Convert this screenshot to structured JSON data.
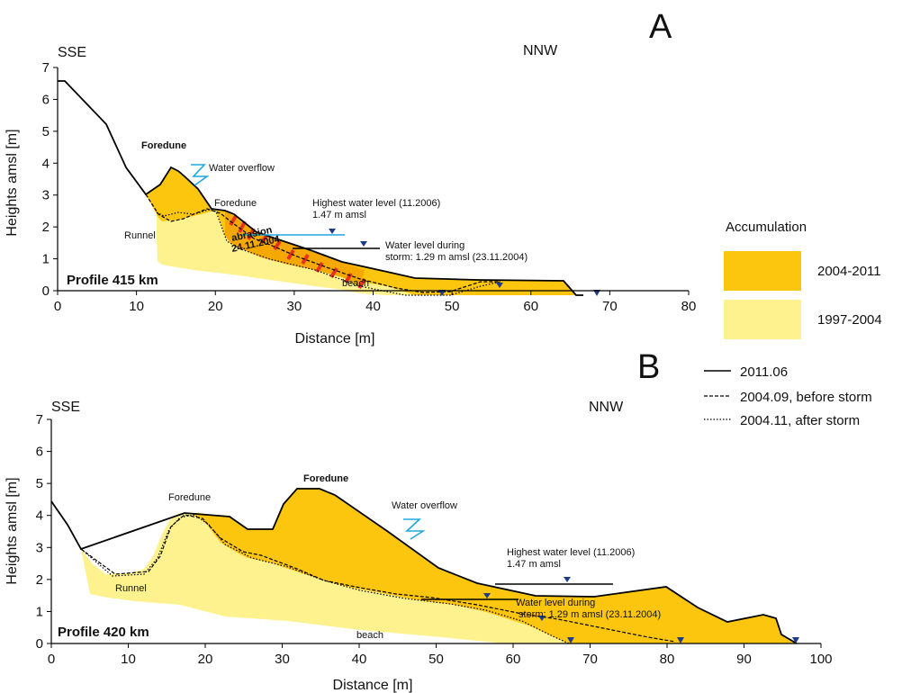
{
  "chart_data": [
    {
      "type": "area",
      "panel_letter": "A",
      "profile_label": "Profile 415 km",
      "direction_left": "SSE",
      "direction_right": "NNW",
      "xlabel": "Distance [m]",
      "ylabel": "Heights amsl [m]",
      "xlim": [
        0,
        80
      ],
      "ylim": [
        0,
        7
      ],
      "xticks": [
        0,
        10,
        20,
        30,
        40,
        50,
        60,
        70,
        80
      ],
      "yticks": [
        0,
        1,
        2,
        3,
        4,
        5,
        6,
        7
      ],
      "series": [
        {
          "name": "2011.06",
          "x": [
            0,
            1,
            6,
            11,
            14.5,
            18,
            20,
            25,
            30,
            45,
            55,
            64,
            68
          ],
          "y": [
            6.7,
            6.7,
            5.3,
            3.0,
            3.95,
            2.45,
            2.4,
            1.5,
            0.85,
            0.4,
            0.32,
            0.3,
            0
          ]
        },
        {
          "name": "2004.09, before storm",
          "x": [
            11,
            13,
            16,
            19,
            22,
            25,
            28,
            34,
            40,
            45,
            48,
            52,
            55
          ],
          "y": [
            3.0,
            2.5,
            2.3,
            2.5,
            2.2,
            1.5,
            0.9,
            0.55,
            0.2,
            0.05,
            0.05,
            0.2,
            0.2
          ]
        },
        {
          "name": "2004.11, after storm",
          "x": [
            13,
            15,
            18,
            20,
            22,
            24,
            27,
            35,
            42,
            48,
            52,
            55
          ],
          "y": [
            2.3,
            2.2,
            2.4,
            2.4,
            1.0,
            0.8,
            0.55,
            0.35,
            0.1,
            0.05,
            0.2,
            0.2
          ]
        }
      ],
      "accumulation": [
        {
          "period": "2004-2011",
          "color": "#FCC60E"
        },
        {
          "period": "1997-2004",
          "color": "#FEF28E"
        }
      ],
      "water_levels": [
        {
          "label": "Highest water level (11.2006)",
          "sublabel": "1.47 m amsl",
          "color": "#20A8E0"
        },
        {
          "label": "Water level during",
          "sublabel": "storm: 1.29 m amsl (23.11.2004)",
          "color": "#000000"
        }
      ],
      "annotations": [
        "Foredune",
        "Water overflow",
        "Foredune",
        "Runnel",
        "abrasion",
        "24.11.2004",
        "beach"
      ]
    },
    {
      "type": "area",
      "panel_letter": "B",
      "profile_label": "Profile 420 km",
      "direction_left": "SSE",
      "direction_right": "NNW",
      "xlabel": "Distance [m]",
      "ylabel": "Heights amsl [m]",
      "xlim": [
        0,
        100
      ],
      "ylim": [
        0,
        7
      ],
      "xticks": [
        0,
        10,
        20,
        30,
        40,
        50,
        60,
        70,
        80,
        90,
        100
      ],
      "yticks": [
        0,
        1,
        2,
        3,
        4,
        5,
        6,
        7
      ],
      "series": [
        {
          "name": "2011.06",
          "x": [
            0,
            4,
            17,
            23,
            25,
            29,
            31,
            34,
            36,
            50,
            58,
            70,
            80,
            87,
            91,
            94,
            96
          ],
          "y": [
            4.5,
            3.0,
            4.2,
            4.0,
            3.65,
            3.7,
            4.5,
            4.9,
            4.85,
            2.5,
            1.8,
            1.6,
            1.85,
            0.6,
            0.9,
            0.8,
            0
          ]
        },
        {
          "name": "2004.09, before storm",
          "x": [
            4,
            8,
            13,
            17,
            20,
            25,
            30,
            40,
            50,
            60,
            70,
            80
          ],
          "y": [
            3.0,
            2.15,
            2.3,
            4.0,
            4.1,
            2.8,
            2.3,
            1.5,
            1.25,
            0.9,
            0.6,
            0.05
          ]
        },
        {
          "name": "2004.11, after storm",
          "x": [
            4,
            8,
            13,
            17,
            20,
            25,
            30,
            40,
            50,
            60,
            65
          ],
          "y": [
            3.0,
            2.15,
            2.2,
            3.9,
            4.0,
            2.5,
            2.1,
            1.4,
            1.0,
            0.6,
            0.05
          ]
        }
      ],
      "water_levels": [
        {
          "label": "Highest water level (11.2006)",
          "sublabel": "1.47 m amsl",
          "color": "#000000"
        },
        {
          "label": "Water level during",
          "sublabel": "storm: 1.29 m amsl (23.11.2004)",
          "color": "#000000"
        }
      ],
      "annotations": [
        "Foredune",
        "Foredune",
        "Water overflow",
        "Runnel",
        "beach"
      ]
    }
  ],
  "legend": {
    "accumulation_title": "Accumulation",
    "periods": [
      {
        "label": "2004-2011",
        "color": "#FCC60E"
      },
      {
        "label": "1997-2004",
        "color": "#FEF28E"
      }
    ],
    "lines": [
      {
        "label": "2011.06",
        "style": "solid"
      },
      {
        "label": "2004.09, before storm",
        "style": "dashed"
      },
      {
        "label": "2004.11, after storm",
        "style": "dotted"
      }
    ]
  }
}
